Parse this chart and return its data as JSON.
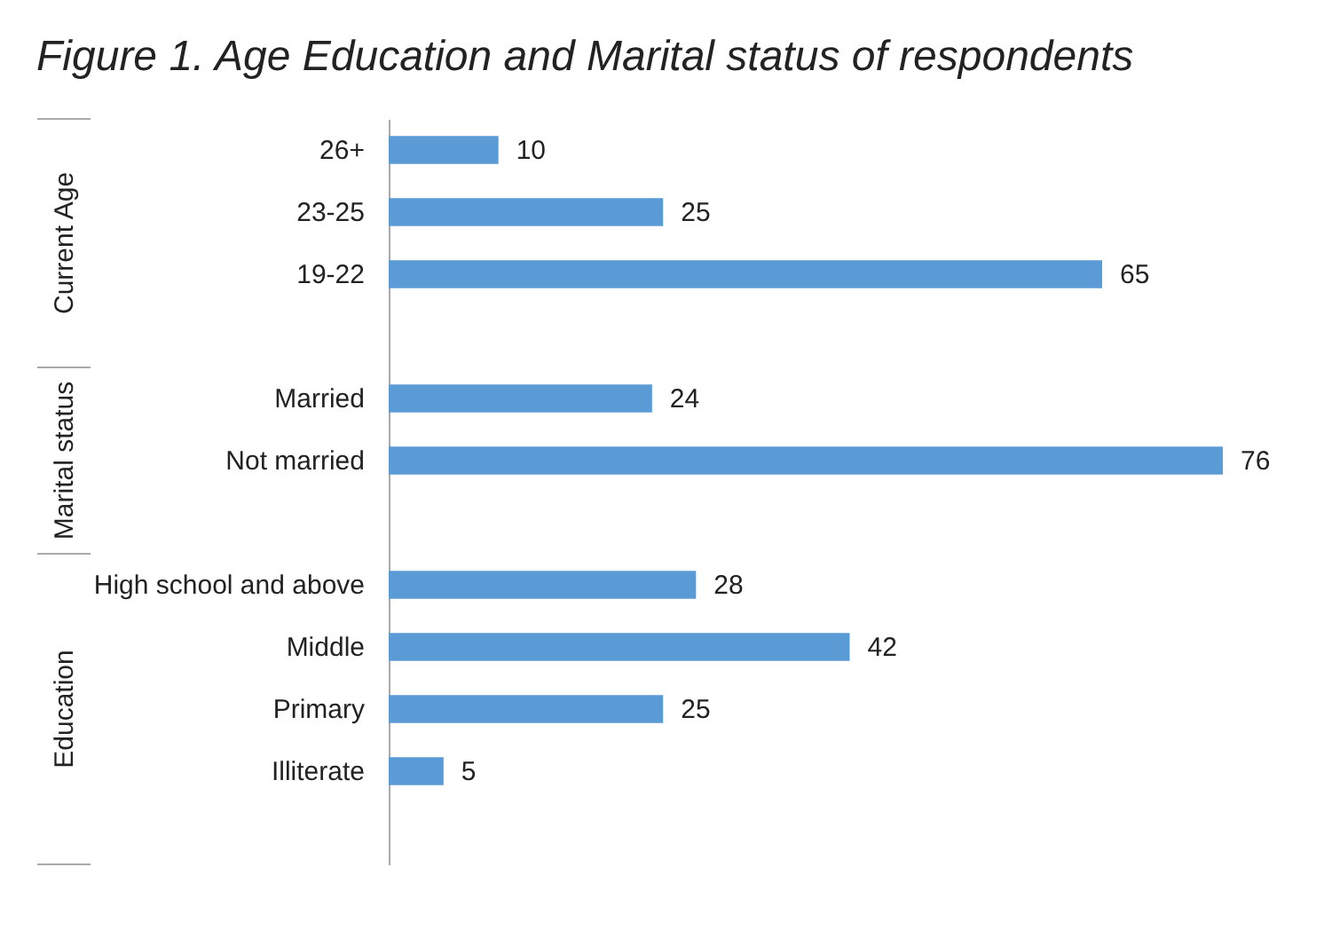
{
  "chart_data": {
    "type": "bar",
    "orientation": "horizontal",
    "title": "Figure 1. Age Education and Marital status of respondents",
    "categories": [
      "26+",
      "23-25",
      "19-22",
      null,
      "Married",
      "Not married",
      null,
      "High school and above",
      "Middle",
      "Primary",
      "Illiterate",
      null
    ],
    "values": [
      10,
      25,
      65,
      null,
      24,
      76,
      null,
      28,
      42,
      25,
      5,
      null
    ],
    "color": "#5b9bd5",
    "data_labels": true,
    "annotations": [
      "Current Age",
      "Marital status",
      "Education"
    ]
  }
}
